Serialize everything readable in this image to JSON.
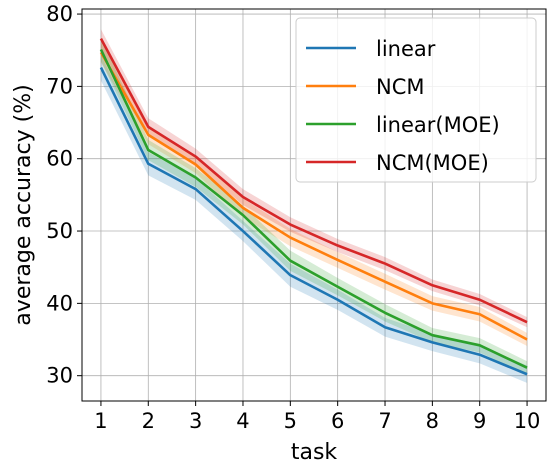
{
  "chart_data": {
    "type": "line",
    "xlabel": "task",
    "ylabel": "average accuracy (%)",
    "x": [
      1,
      2,
      3,
      4,
      5,
      6,
      7,
      8,
      9,
      10
    ],
    "xlim": [
      0.6,
      10.4
    ],
    "ylim": [
      26.5,
      80.7
    ],
    "x_ticks": [
      "1",
      "2",
      "3",
      "4",
      "5",
      "6",
      "7",
      "8",
      "9",
      "10"
    ],
    "y_ticks": [
      "30",
      "40",
      "50",
      "60",
      "70",
      "80"
    ],
    "grid": true,
    "legend_position": "top-right",
    "series": [
      {
        "name": "linear",
        "color": "#1f77b4",
        "values": [
          72.6,
          59.3,
          55.8,
          50.0,
          43.9,
          40.5,
          36.7,
          34.6,
          32.9,
          30.2
        ],
        "band": [
          1.8,
          1.6,
          1.5,
          1.4,
          1.6,
          1.4,
          1.3,
          1.2,
          1.2,
          1.2
        ]
      },
      {
        "name": "NCM",
        "color": "#ff7f0e",
        "values": [
          74.7,
          63.3,
          59.2,
          53.2,
          49.1,
          46.0,
          43.0,
          40.0,
          38.5,
          35.0
        ],
        "band": [
          1.4,
          1.3,
          1.2,
          1.3,
          1.2,
          1.1,
          1.1,
          1.0,
          1.0,
          0.9
        ]
      },
      {
        "name": "linear(MOE)",
        "color": "#2ca02c",
        "values": [
          75.1,
          61.2,
          57.4,
          52.2,
          45.9,
          42.3,
          38.7,
          35.6,
          34.2,
          31.1
        ],
        "band": [
          1.6,
          1.4,
          1.3,
          1.3,
          1.4,
          1.2,
          1.2,
          1.0,
          1.0,
          0.9
        ]
      },
      {
        "name": "NCM(MOE)",
        "color": "#d62728",
        "values": [
          76.6,
          64.4,
          60.3,
          54.7,
          50.9,
          48.0,
          45.5,
          42.5,
          40.5,
          37.4
        ],
        "band": [
          1.3,
          1.2,
          1.1,
          1.1,
          1.0,
          0.9,
          0.9,
          0.8,
          0.8,
          0.7
        ]
      }
    ]
  }
}
